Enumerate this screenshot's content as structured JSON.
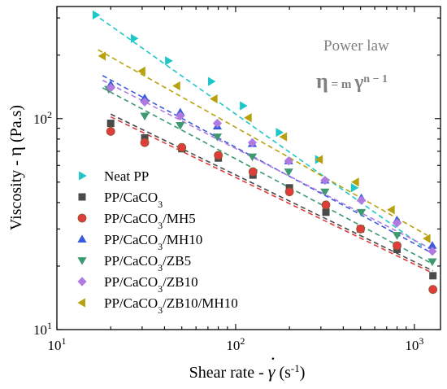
{
  "chart_data": {
    "type": "scatter",
    "xscale": "log",
    "yscale": "log",
    "xlim": [
      10,
      1400
    ],
    "ylim": [
      10,
      340
    ],
    "xlabel": "Shear rate - γ̇ (s⁻¹)",
    "ylabel": "Viscosity - η (Pa.s)",
    "xlabel_parts": {
      "prefix": "Shear rate - ",
      "symbol": "γ",
      "unit_open": " (s",
      "unit_sup": "-1",
      "unit_close": ")"
    },
    "ylabel_parts": {
      "prefix": "Viscosity - ",
      "symbol": "η",
      "unit": " (Pa.s)"
    },
    "x_ticks": [
      {
        "value": 10,
        "base": "10",
        "exp": "1"
      },
      {
        "value": 100,
        "base": "10",
        "exp": "2"
      },
      {
        "value": 1000,
        "base": "10",
        "exp": "3"
      }
    ],
    "y_ticks": [
      {
        "value": 10,
        "base": "10",
        "exp": "1"
      },
      {
        "value": 100,
        "base": "10",
        "exp": "2"
      }
    ],
    "annotations": {
      "title": "Power law",
      "equation": {
        "eta": "η",
        "eq": " = m ",
        "gamma": "γ",
        "exp": "n − 1"
      }
    },
    "legend_position": "bottom-left",
    "series": [
      {
        "name": "Neat PP",
        "label_main": "Neat PP",
        "label_sub": "",
        "label_tail": "",
        "marker": "triangle-right",
        "color": "#1fc6c9",
        "x": [
          16.5,
          27,
          42,
          73,
          110,
          175,
          290,
          460
        ],
        "y": [
          310,
          240,
          188,
          150,
          115,
          86,
          64,
          47
        ],
        "fit": {
          "x": [
            16,
            1100
          ],
          "y": [
            315,
            25
          ]
        }
      },
      {
        "name": "PP/CaCO3",
        "label_main": "PP/CaCO",
        "label_sub": "3",
        "label_tail": "",
        "marker": "square",
        "color": "#4a4a4a",
        "x": [
          20,
          31,
          50,
          80,
          125,
          200,
          320,
          500,
          800,
          1270
        ],
        "y": [
          95,
          81,
          72,
          65,
          54,
          47,
          36,
          30,
          24,
          18
        ],
        "fit": {
          "x": [
            20,
            1270
          ],
          "y": [
            105,
            19
          ]
        }
      },
      {
        "name": "PP/CaCO3/MH5",
        "label_main": "PP/CaCO",
        "label_sub": "3",
        "label_tail": "/MH5",
        "marker": "circle",
        "color": "#e03c3c",
        "edge": "#8a5a2a",
        "x": [
          20,
          31,
          50,
          80,
          125,
          200,
          320,
          500,
          800,
          1270
        ],
        "y": [
          87,
          77,
          73,
          67,
          56,
          45,
          39,
          30,
          25,
          15.5
        ],
        "fit": {
          "x": [
            20,
            1270
          ],
          "y": [
            102,
            18.5
          ]
        }
      },
      {
        "name": "PP/CaCO3/MH10",
        "label_main": "PP/CaCO",
        "label_sub": "3",
        "label_tail": "/MH10",
        "marker": "triangle-up",
        "color": "#3b5bdb",
        "x": [
          20,
          31,
          49,
          79,
          124,
          198,
          316,
          505,
          800,
          1260
        ],
        "y": [
          145,
          125,
          107,
          92,
          76,
          63,
          51,
          42,
          33,
          25
        ],
        "fit": {
          "x": [
            18,
            1260
          ],
          "y": [
            160,
            23
          ]
        }
      },
      {
        "name": "PP/CaCO3/ZB5",
        "label_main": "PP/CaCO",
        "label_sub": "3",
        "label_tail": "/ZB5",
        "marker": "triangle-down",
        "color": "#3d9970",
        "x": [
          19.5,
          31,
          49,
          79,
          124,
          198,
          316,
          505,
          800,
          1260
        ],
        "y": [
          138,
          103,
          93,
          82,
          66,
          56,
          45,
          36,
          28,
          21
        ],
        "fit": {
          "x": [
            18,
            1260
          ],
          "y": [
            140,
            20.5
          ]
        }
      },
      {
        "name": "PP/CaCO3/ZB10",
        "label_main": "PP/CaCO",
        "label_sub": "3",
        "label_tail": "/ZB10",
        "marker": "diamond",
        "color": "#b07ae0",
        "x": [
          20,
          31,
          49,
          79,
          124,
          198,
          316,
          505,
          800,
          1260
        ],
        "y": [
          140,
          120,
          103,
          95,
          77,
          63,
          51,
          41,
          32,
          23.5
        ],
        "fit": {
          "x": [
            18,
            1260
          ],
          "y": [
            152,
            24
          ]
        }
      },
      {
        "name": "PP/CaCO3/ZB10/MH10",
        "label_main": "PP/CaCO",
        "label_sub": "3",
        "label_tail": "/ZB10/MH10",
        "marker": "triangle-left",
        "color": "#b8a10f",
        "x": [
          18,
          30,
          47,
          76,
          118,
          186,
          295,
          470,
          745,
          1180
        ],
        "y": [
          198,
          168,
          143,
          124,
          101,
          82,
          64,
          50,
          37,
          27
        ],
        "fit": {
          "x": [
            17,
            1180
          ],
          "y": [
            212,
            28
          ]
        }
      }
    ]
  }
}
